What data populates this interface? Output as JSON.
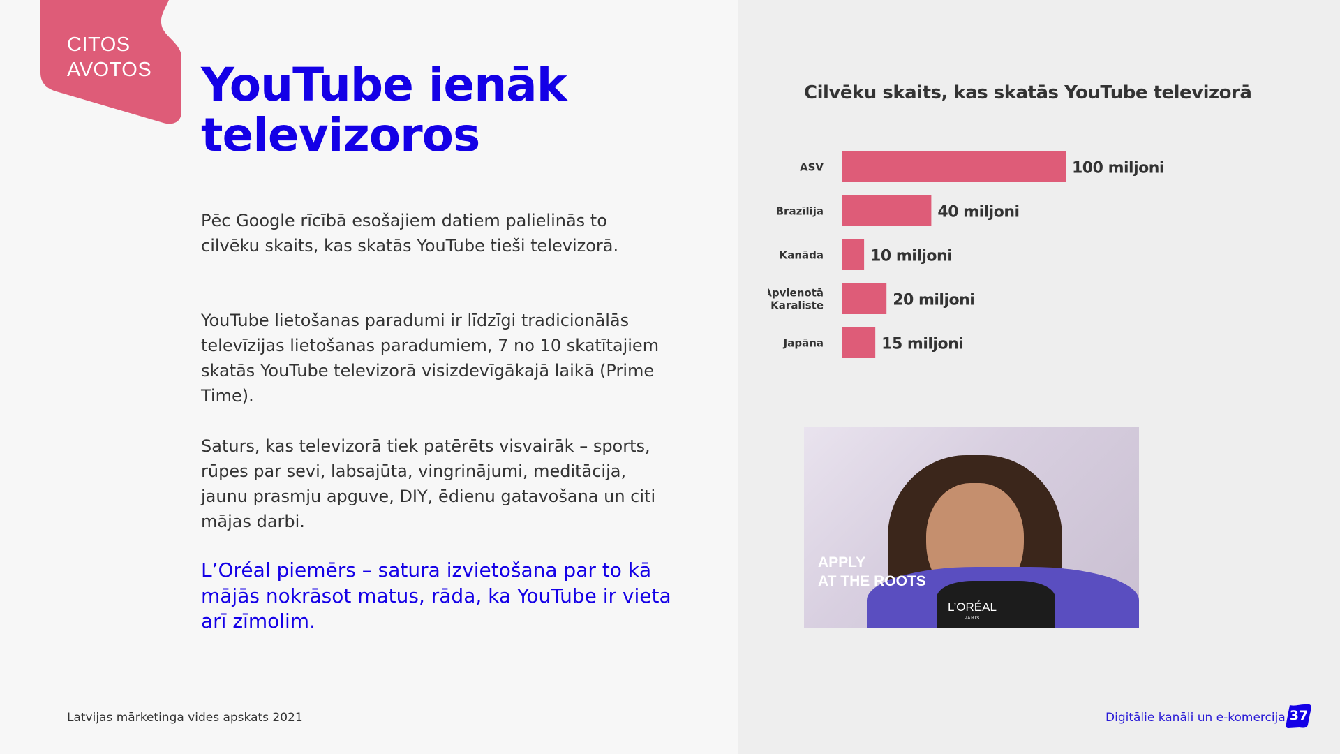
{
  "badge": {
    "line1": "CITOS",
    "line2": "AVOTOS",
    "color": "#de5c78"
  },
  "title": {
    "line1": "YouTube ienāk",
    "line2": "televizoros"
  },
  "paragraphs": [
    "Pēc Google rīcībā esošajiem datiem palielinās to cilvēku skaits, kas skatās YouTube tieši televizorā.",
    "YouTube lietošanas paradumi ir līdzīgi tradicionālās televīzijas lietošanas paradumiem, 7 no 10 skatītajiem skatās YouTube televizorā visizdevīgākajā laikā (Prime Time).",
    "Saturs, kas televizorā tiek patērēts visvairāk – sports, rūpes par sevi, labsajūta, vingrinājumi, meditācija, jaunu prasmju apguve, DIY, ēdienu gatavošana un citi mājas darbi."
  ],
  "highlight": "L’Oréal piemērs – satura izvietošana par to kā mājās nokrāsot matus, rāda, ka YouTube ir vieta arī zīmolim.",
  "footer": {
    "left": "Latvijas mārketinga vides apskats 2021",
    "right": "Digitālie kanāli un e-komercija",
    "page": "37"
  },
  "photo": {
    "caption_line1": "APPLY",
    "caption_line2": "AT THE ROOTS",
    "logo": "L’ORÉAL",
    "logo_sub": "PARIS"
  },
  "colors": {
    "accent_blue": "#1400e6",
    "bar": "#de5c78"
  },
  "chart_data": {
    "type": "bar",
    "orientation": "horizontal",
    "title": "Cilvēku skaits, kas skatās YouTube televizorā",
    "categories": [
      "ASV",
      "Brazīlija",
      "Kanāda",
      "Apvienotā Karaliste",
      "Japāna"
    ],
    "category_lines": [
      [
        "ASV"
      ],
      [
        "Brazīlija"
      ],
      [
        "Kanāda"
      ],
      [
        "Apvienotā",
        "Karaliste"
      ],
      [
        "Japāna"
      ]
    ],
    "values": [
      100,
      40,
      10,
      20,
      15
    ],
    "data_labels": [
      "100 miljoni",
      "40 miljoni",
      "10 miljoni",
      "20 miljoni",
      "15 miljoni"
    ],
    "unit": "miljoni",
    "grid": false,
    "axes_visible": false
  }
}
